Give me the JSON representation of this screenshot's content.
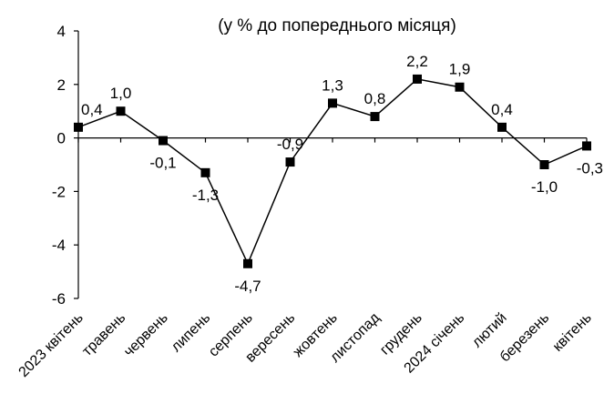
{
  "chart_data": {
    "type": "line",
    "title": "(у %  до попереднього місяця)",
    "xlabel": "",
    "ylabel": "",
    "ylim": [
      -6,
      4
    ],
    "yticks": [
      -6,
      -4,
      -2,
      0,
      2,
      4
    ],
    "ytick_labels": [
      "-6",
      "-4",
      "-2",
      "0",
      "2",
      "4"
    ],
    "grid": false,
    "legend": "none",
    "categories": [
      "2023 квітень",
      "травень",
      "червень",
      "липень",
      "серпень",
      "вересень",
      "жовтень",
      "листопад",
      "грудень",
      "2024 січень",
      "лютий",
      "березень",
      "квітень"
    ],
    "series": [
      {
        "values": [
          0.4,
          1.0,
          -0.1,
          -1.3,
          -4.7,
          -0.9,
          1.3,
          0.8,
          2.2,
          1.9,
          0.4,
          -1.0,
          -0.3
        ],
        "labels": [
          "0,4",
          "1,0",
          "-0,1",
          "-1,3",
          "-4,7",
          "-0,9",
          "1,3",
          "0,8",
          "2,2",
          "1,9",
          "0,4",
          "-1,0",
          "-0,3"
        ],
        "color": "#000000",
        "marker": "square"
      }
    ]
  }
}
